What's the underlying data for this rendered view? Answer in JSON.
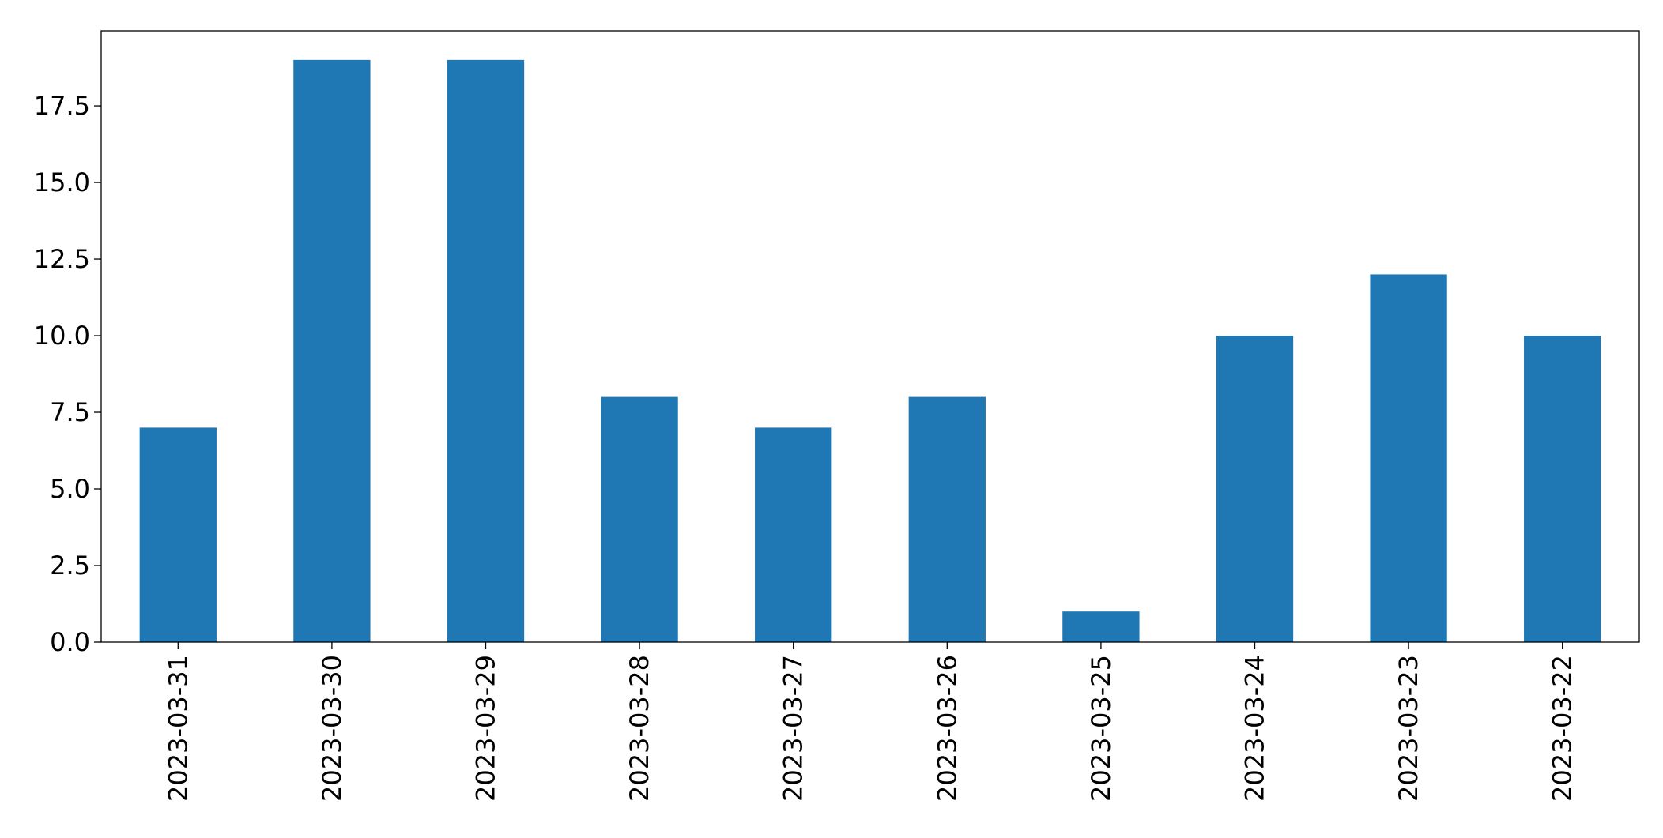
{
  "chart_data": {
    "type": "bar",
    "categories": [
      "2023-03-31",
      "2023-03-30",
      "2023-03-29",
      "2023-03-28",
      "2023-03-27",
      "2023-03-26",
      "2023-03-25",
      "2023-03-24",
      "2023-03-23",
      "2023-03-22"
    ],
    "values": [
      7,
      19,
      19,
      8,
      7,
      8,
      1,
      10,
      12,
      10
    ],
    "color": "#1f77b4",
    "ylim": [
      0,
      19.95
    ],
    "yticks": [
      {
        "value": 0,
        "label": "0.0"
      },
      {
        "value": 2.5,
        "label": "2.5"
      },
      {
        "value": 5,
        "label": "5.0"
      },
      {
        "value": 7.5,
        "label": "7.5"
      },
      {
        "value": 10,
        "label": "10.0"
      },
      {
        "value": 12.5,
        "label": "12.5"
      },
      {
        "value": 15,
        "label": "15.0"
      },
      {
        "value": 17.5,
        "label": "17.5"
      }
    ],
    "grid": false
  }
}
